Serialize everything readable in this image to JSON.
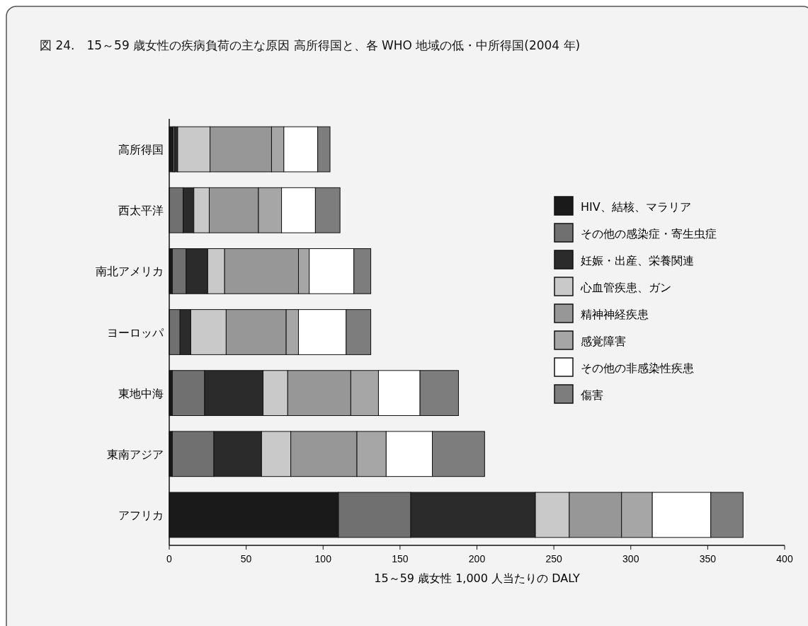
{
  "chart_data": {
    "type": "bar",
    "orientation": "horizontal",
    "stacked": true,
    "title": "図 24.　15～59 歳女性の疾病負荷の主な原因  高所得国と、各 WHO 地域の低・中所得国(2004 年)",
    "xlabel": "15～59 歳女性 1,000 人当たりの DALY",
    "categories": [
      "高所得国",
      "西太平洋",
      "南北アメリカ",
      "ヨーロッパ",
      "東地中海",
      "東南アジア",
      "アフリカ"
    ],
    "series": [
      {
        "name": "HIV、結核、マラリア",
        "color": "#1a1a1a",
        "values": [
          2.5,
          null,
          2,
          null,
          2,
          2,
          110
        ]
      },
      {
        "name": "その他の感染症・寄生虫症",
        "color": "#707070",
        "values": [
          1,
          9,
          9,
          7,
          21,
          27,
          47
        ]
      },
      {
        "name": "妊娠・出産、栄養関連",
        "color": "#2b2b2b",
        "values": [
          2,
          7,
          14,
          7,
          38,
          31,
          81
        ]
      },
      {
        "name": "心血管疾患、ガン",
        "color": "#c9c9c9",
        "values": [
          21,
          10,
          11,
          23,
          16,
          19,
          22
        ]
      },
      {
        "name": "精神神経疾患",
        "color": "#979797",
        "values": [
          40,
          32,
          48,
          39,
          41,
          43,
          34
        ]
      },
      {
        "name": "感覚障害",
        "color": "#a6a6a6",
        "values": [
          8,
          15,
          7,
          8,
          18,
          19,
          20
        ]
      },
      {
        "name": "その他の非感染性疾患",
        "color": "#ffffff",
        "values": [
          22,
          22,
          29,
          31,
          27,
          30,
          38
        ]
      },
      {
        "name": "傷害",
        "color": "#7d7d7d",
        "values": [
          8,
          16,
          11,
          16,
          25,
          34,
          21
        ]
      }
    ],
    "xlim": [
      0,
      400
    ],
    "xticks": [
      0,
      50,
      100,
      150,
      200,
      250,
      300,
      350,
      400
    ],
    "legend": "right",
    "grid": false
  }
}
